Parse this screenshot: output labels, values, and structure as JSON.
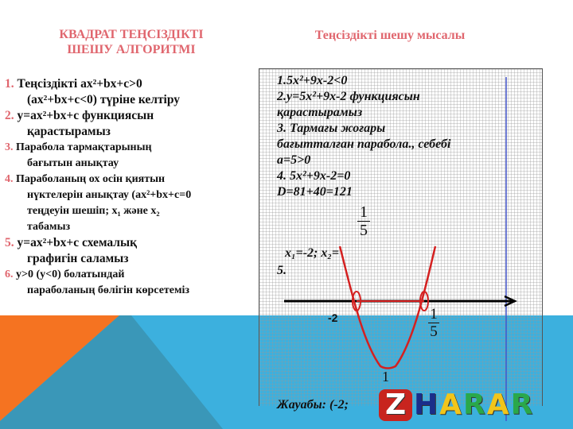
{
  "left_title": [
    "КВАДРАТ ТЕҢСІЗДІКТІ",
    "ШЕШУ АЛГОРИТМІ"
  ],
  "right_title": "Теңсіздікті шешу мысалы",
  "steps": [
    {
      "num": "1.",
      "lines": [
        "Теңсіздікті   ax²+bx+c>0",
        "(ax²+bx+c<0)  түріне келтіру"
      ]
    },
    {
      "num": "2.",
      "lines": [
        "y=ax²+bx+c функциясын",
        "қарастырамыз"
      ]
    },
    {
      "num": "3.",
      "lines": [
        "Парабола тармақтарының",
        "бағытын анықтау"
      ]
    },
    {
      "num": "4.",
      "lines": [
        "Параболаның  ох осін қиятын",
        "нүктелерін анықтау (ax²+bx+c=0",
        "теңдеуін шешіп; x₁  және  x₂",
        "табамыз"
      ]
    },
    {
      "num": "5.",
      "lines": [
        " y=ax²+bx+c  схемалық",
        "графигін саламыз"
      ]
    },
    {
      "num": "6.",
      "lines": [
        "y>0 (y<0) болатындай",
        "параболаның бөлігін көрсетеміз"
      ]
    }
  ],
  "example_lines": [
    "1.5x²+9x-2<0",
    "2.y=5x²+9x-2  функциясын",
    "қарастырамыз",
    "3. Тармағы жоғары",
    "бағытталған  парабола., себебі",
    "a=5>0",
    "4. 5x²+9x-2=0",
    "D=81+40=121"
  ],
  "roots_text": "x₁=-2; x₂=",
  "fraction": {
    "num": "1",
    "den": "5"
  },
  "step5": "5.",
  "axis_labels": {
    "left_root": "-2",
    "right_root_num": "1",
    "right_root_den": "5",
    "vertex_label": "1"
  },
  "answer": "Жауабы: (-2;",
  "logo": [
    "Z",
    "H",
    "A",
    "R",
    "A",
    "R"
  ],
  "colors": {
    "accent": "#e0666e",
    "orange": "#f57321",
    "blue": "#3cb0de",
    "teal": "#3a97b8",
    "curve": "#d42020"
  }
}
